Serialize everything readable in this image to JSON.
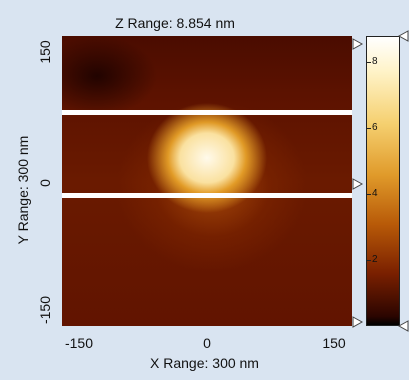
{
  "window": {
    "z_range_label": "Z Range:  8.854 nm",
    "x_range_label": "X Range: 300 nm",
    "y_range_label": "Y Range: 300 nm"
  },
  "axes": {
    "x_ticks": [
      "-150",
      "0",
      "150"
    ],
    "y_ticks": [
      "150",
      "0",
      "-150"
    ]
  },
  "colorbar": {
    "ticks": [
      "8",
      "6",
      "4",
      "2"
    ],
    "colors": [
      "#ffffff",
      "#f5d070",
      "#e09a2a",
      "#b85a08",
      "#7a2000",
      "#000000"
    ]
  },
  "icons": {
    "scan_marker_left": "triangle-right-marker-icon",
    "colorbar_marker": "triangle-left-marker-icon"
  }
}
